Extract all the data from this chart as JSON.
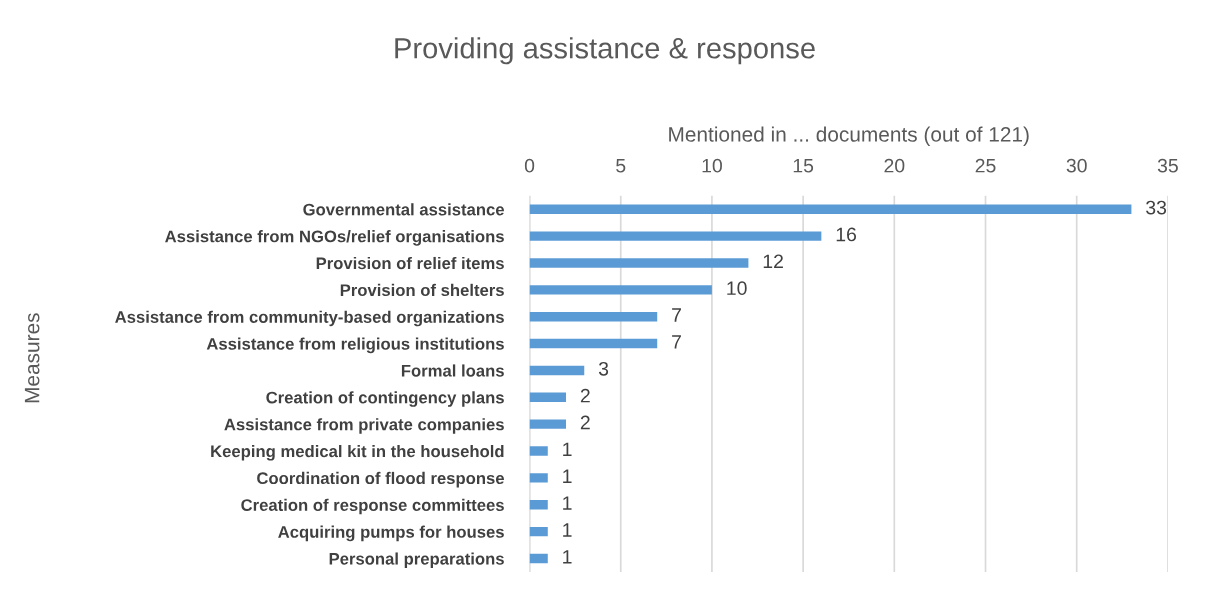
{
  "chart_data": {
    "type": "bar",
    "orientation": "horizontal",
    "title": "Providing assistance & response",
    "xlabel": "Mentioned in ... documents (out of 121)",
    "ylabel": "Measures",
    "categories": [
      "Governmental assistance",
      "Assistance from NGOs/relief organisations",
      "Provision of relief items",
      "Provision of shelters",
      "Assistance from community-based organizations",
      "Assistance from religious institutions",
      "Formal loans",
      "Creation of contingency plans",
      "Assistance from private companies",
      "Keeping medical kit in the household",
      "Coordination of flood response",
      "Creation of response committees",
      "Acquiring pumps for houses",
      "Personal preparations"
    ],
    "values": [
      33,
      16,
      12,
      10,
      7,
      7,
      3,
      2,
      2,
      1,
      1,
      1,
      1,
      1
    ],
    "color": "#5b9bd5",
    "xlim": [
      0,
      35
    ],
    "xticks": [
      0,
      5,
      10,
      15,
      20,
      25,
      30,
      35
    ],
    "grid": "x",
    "data_labels": true,
    "legend": false
  }
}
